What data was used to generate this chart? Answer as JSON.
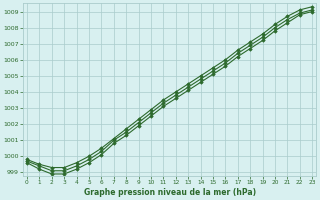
{
  "xlabel": "Graphe pression niveau de la mer (hPa)",
  "x": [
    0,
    1,
    2,
    3,
    4,
    5,
    6,
    7,
    8,
    9,
    10,
    11,
    12,
    13,
    14,
    15,
    16,
    17,
    18,
    19,
    20,
    21,
    22,
    23
  ],
  "line1": [
    999.8,
    999.5,
    999.3,
    999.3,
    999.6,
    1000.0,
    1000.5,
    1001.1,
    1001.7,
    1002.3,
    1002.9,
    1003.5,
    1004.0,
    1004.5,
    1005.0,
    1005.5,
    1006.0,
    1006.6,
    1007.1,
    1007.6,
    1008.2,
    1008.7,
    1009.1,
    1009.3
  ],
  "line2": [
    999.7,
    999.4,
    999.1,
    999.1,
    999.4,
    999.8,
    1000.3,
    1001.0,
    1001.5,
    1002.1,
    1002.7,
    1003.3,
    1003.8,
    1004.3,
    1004.8,
    1005.3,
    1005.8,
    1006.4,
    1006.9,
    1007.4,
    1008.0,
    1008.5,
    1008.9,
    1009.1
  ],
  "line3": [
    999.6,
    999.2,
    998.9,
    998.9,
    999.2,
    999.6,
    1000.1,
    1000.8,
    1001.3,
    1001.9,
    1002.5,
    1003.1,
    1003.6,
    1004.1,
    1004.6,
    1005.1,
    1005.6,
    1006.2,
    1006.7,
    1007.2,
    1007.8,
    1008.3,
    1008.8,
    1009.0
  ],
  "line_color": "#2d6a2d",
  "bg_color": "#d8f0f0",
  "grid_color": "#aacccc",
  "ylim": [
    998.8,
    1009.5
  ],
  "yticks": [
    999,
    1000,
    1001,
    1002,
    1003,
    1004,
    1005,
    1006,
    1007,
    1008,
    1009
  ],
  "xticks": [
    0,
    1,
    2,
    3,
    4,
    5,
    6,
    7,
    8,
    9,
    10,
    11,
    12,
    13,
    14,
    15,
    16,
    17,
    18,
    19,
    20,
    21,
    22,
    23
  ],
  "marker": "D",
  "marker_size": 1.8,
  "line_width": 0.8
}
